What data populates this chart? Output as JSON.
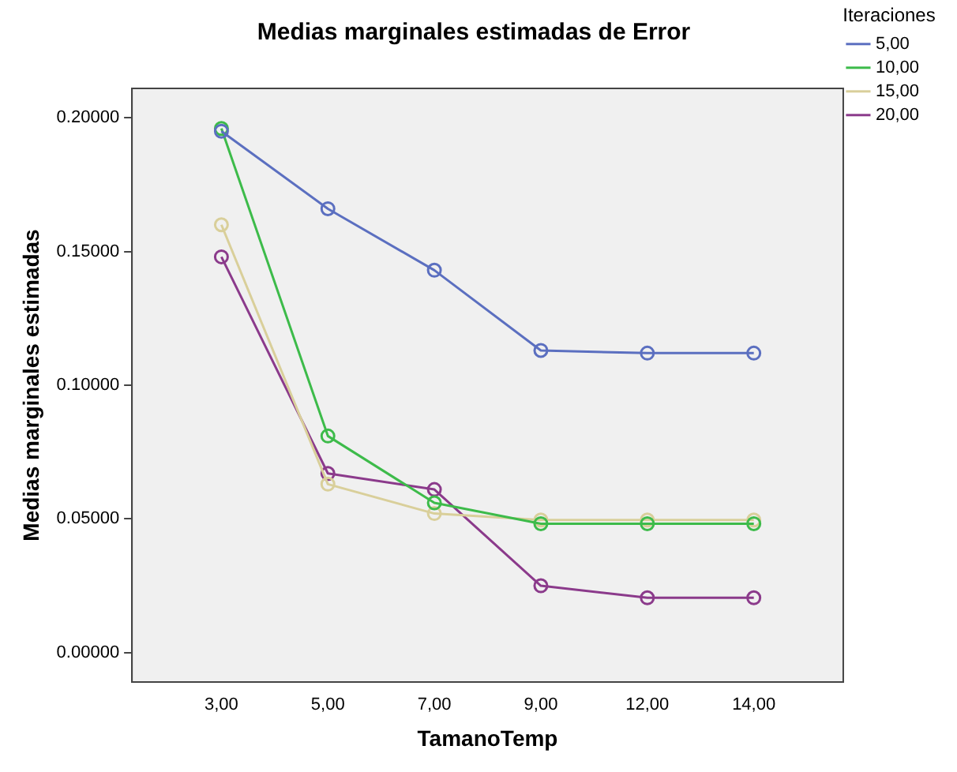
{
  "chart_data": {
    "type": "line",
    "title": "Medias marginales estimadas de Error",
    "xlabel": "TamanoTemp",
    "ylabel": "Medias marginales estimadas",
    "legend_title": "Iteraciones",
    "legend": "right",
    "marker": "circle",
    "line_style": "solid",
    "grid": false,
    "categories": [
      "3,00",
      "5,00",
      "7,00",
      "9,00",
      "12,00",
      "14,00"
    ],
    "ylim": [
      -0.011,
      0.211
    ],
    "yticks": [
      {
        "value": 0,
        "label": "0.00000"
      },
      {
        "value": 0.05,
        "label": "0.05000"
      },
      {
        "value": 0.1,
        "label": "0.10000"
      },
      {
        "value": 0.15,
        "label": "0.15000"
      },
      {
        "value": 0.2,
        "label": "0.20000"
      }
    ],
    "series": [
      {
        "name": "5,00",
        "color": "#5b6fc0",
        "values": [
          0.195,
          0.166,
          0.143,
          0.113,
          0.112,
          0.112
        ]
      },
      {
        "name": "10,00",
        "color": "#3dbb4a",
        "values": [
          0.196,
          0.081,
          0.056,
          0.0482,
          0.0482,
          0.0482
        ]
      },
      {
        "name": "15,00",
        "color": "#d9cf9a",
        "values": [
          0.16,
          0.063,
          0.052,
          0.0496,
          0.0496,
          0.0496
        ]
      },
      {
        "name": "20,00",
        "color": "#8b3a8b",
        "values": [
          0.148,
          0.067,
          0.061,
          0.025,
          0.0205,
          0.0205
        ]
      }
    ]
  }
}
